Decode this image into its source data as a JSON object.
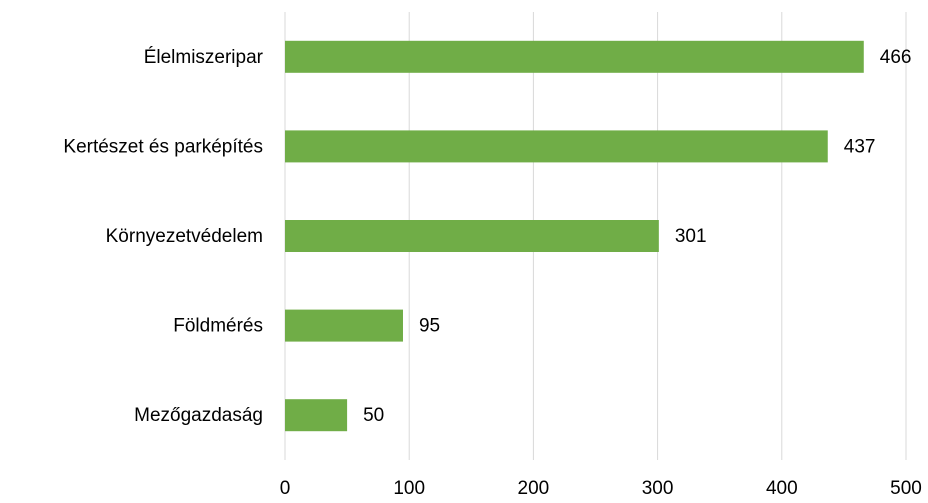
{
  "chart_data": {
    "type": "bar",
    "orientation": "horizontal",
    "categories": [
      "Élelmiszeripar",
      "Kertészet és parképítés",
      "Környezetvédelem",
      "Földmérés",
      "Mezőgazdaság"
    ],
    "values": [
      466,
      437,
      301,
      95,
      50
    ],
    "color": "#70ad47",
    "xlim": [
      0,
      500
    ],
    "xticks": [
      0,
      100,
      200,
      300,
      400,
      500
    ],
    "grid": true,
    "data_labels": true
  }
}
